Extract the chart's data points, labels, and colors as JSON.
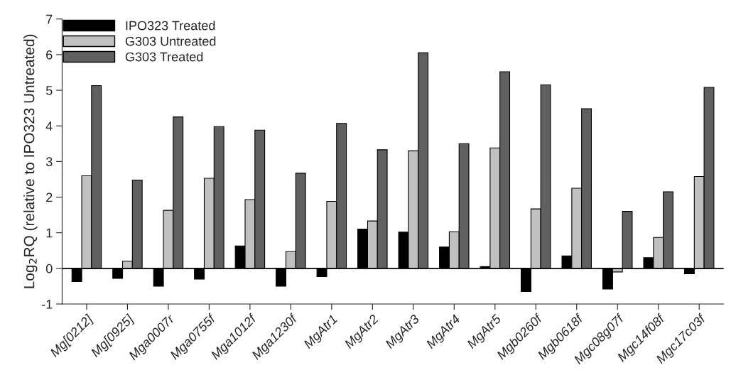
{
  "chart_data": {
    "type": "bar",
    "ylabel": "Log$_{2}$RQ (relative to IPO323 Untreated)",
    "categories": [
      "Mg[0212]",
      "Mg[0925]",
      "Mga0007r",
      "Mga0755f",
      "Mga1012f",
      "Mga1230f",
      "MgAtr1",
      "MgAtr2",
      "MgAtr3",
      "MgAtr4",
      "MgAtr5",
      "Mgb0260f",
      "Mgb0618f",
      "Mgc08g07f",
      "Mgc14f08f",
      "Mgc17c03f"
    ],
    "series": [
      {
        "name": "IPO323 Treated",
        "color": "#000000",
        "values": [
          -0.37,
          -0.28,
          -0.5,
          -0.3,
          0.63,
          -0.5,
          -0.23,
          1.1,
          1.02,
          0.6,
          0.05,
          -0.65,
          0.35,
          -0.58,
          0.3,
          -0.15
        ]
      },
      {
        "name": "G303 Untreated",
        "color": "#c0c0c0",
        "values": [
          2.6,
          0.2,
          1.63,
          2.53,
          1.93,
          0.47,
          1.88,
          1.33,
          3.3,
          1.03,
          3.38,
          1.67,
          2.25,
          -0.1,
          0.87,
          2.58
        ]
      },
      {
        "name": "G303 Treated",
        "color": "#606060",
        "values": [
          5.13,
          2.48,
          4.25,
          3.98,
          3.88,
          2.67,
          4.07,
          3.33,
          6.05,
          3.5,
          5.52,
          5.15,
          4.48,
          1.6,
          2.15,
          5.08
        ]
      }
    ],
    "ylim": [
      -1,
      7
    ],
    "yticks": [
      -1,
      0,
      1,
      2,
      3,
      4,
      5,
      6,
      7
    ],
    "ref_lines": [
      {
        "axis": "y",
        "value": 0,
        "color": "#000000"
      }
    ],
    "grid": false,
    "legend": "top left"
  }
}
